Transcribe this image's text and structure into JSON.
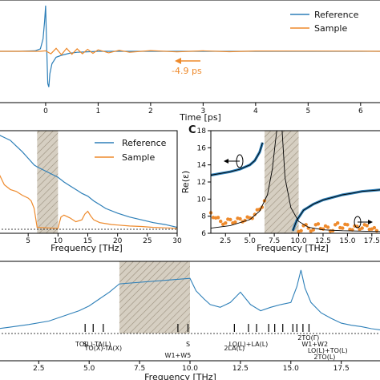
{
  "chart_data": [
    {
      "id": "time_domain",
      "type": "line",
      "xlabel": "Time [ps]",
      "xlim": [
        -0.9,
        6.4
      ],
      "ylim": [
        -1,
        1
      ],
      "xticks": [
        0,
        1,
        2,
        3,
        4,
        5,
        6
      ],
      "xtick_labels": [
        "0",
        "1",
        "2",
        "3",
        "4",
        "5",
        "6"
      ],
      "legend": {
        "placement": "top-right",
        "entries": [
          "Reference",
          "Sample"
        ]
      },
      "annotation": {
        "text": "-4.9 ps",
        "color": "#ee8a2c",
        "x": 1.8,
        "y": -0.12
      },
      "series": [
        {
          "name": "Reference",
          "color": "#2d7fb8",
          "x": [
            -0.9,
            -0.5,
            -0.2,
            -0.1,
            -0.05,
            -0.02,
            0.0,
            0.02,
            0.04,
            0.06,
            0.08,
            0.12,
            0.2,
            0.3,
            0.45,
            0.6,
            0.8,
            1.0,
            1.3,
            1.6,
            2.0,
            3.0,
            4.0,
            5.0,
            6.4
          ],
          "y": [
            0,
            0,
            0.01,
            0.05,
            0.25,
            0.6,
            0.92,
            0.1,
            -0.65,
            -0.72,
            -0.45,
            -0.25,
            -0.12,
            -0.08,
            -0.04,
            -0.02,
            -0.01,
            0.0,
            0.0,
            0.0,
            0.0,
            0.0,
            0.0,
            0.0,
            0.0
          ]
        },
        {
          "name": "Sample",
          "color": "#ee8a2c",
          "x": [
            -0.9,
            -0.3,
            -0.1,
            0.0,
            0.1,
            0.2,
            0.3,
            0.4,
            0.5,
            0.6,
            0.7,
            0.8,
            0.9,
            1.0,
            1.2,
            1.4,
            1.6,
            2.0,
            2.5,
            3.0,
            3.5,
            4.0,
            5.0,
            6.0,
            6.4
          ],
          "y": [
            0,
            0,
            0.0,
            0.01,
            -0.05,
            0.06,
            -0.07,
            0.06,
            -0.06,
            0.05,
            -0.05,
            0.04,
            -0.04,
            0.03,
            -0.03,
            0.02,
            -0.02,
            0.015,
            -0.012,
            0.01,
            -0.008,
            0.006,
            0.005,
            0.003,
            0.0
          ]
        }
      ]
    },
    {
      "id": "spectrum",
      "type": "line",
      "xlabel": "Frequency [THz]",
      "xlim": [
        0,
        30
      ],
      "ylim": [
        0,
        1
      ],
      "xticks": [
        5,
        10,
        15,
        20,
        25,
        30
      ],
      "xtick_labels": [
        "5",
        "10",
        "15",
        "20",
        "25",
        "30"
      ],
      "shaded_region": [
        6.5,
        10
      ],
      "legend": {
        "placement": "top-right",
        "entries": [
          "Reference",
          "Sample"
        ]
      },
      "series": [
        {
          "name": "Reference",
          "color": "#2d7fb8",
          "x": [
            0,
            1,
            2,
            3,
            4,
            5,
            6,
            6.5,
            10,
            11,
            12,
            13,
            13.5,
            14,
            15,
            16,
            17,
            18,
            20,
            22,
            24,
            26,
            28,
            30
          ],
          "y": [
            1.0,
            0.97,
            0.94,
            0.88,
            0.82,
            0.75,
            0.68,
            0.66,
            0.55,
            0.5,
            0.46,
            0.42,
            0.4,
            0.38,
            0.35,
            0.3,
            0.26,
            0.22,
            0.17,
            0.13,
            0.1,
            0.07,
            0.05,
            0.02
          ]
        },
        {
          "name": "Sample",
          "color": "#ee8a2c",
          "x": [
            0,
            1,
            2,
            3,
            4,
            5,
            5.5,
            6,
            6.5,
            10,
            10.5,
            11,
            12,
            13,
            14,
            14.5,
            15,
            15.5,
            16,
            17,
            18,
            19,
            20,
            22,
            24,
            26,
            28,
            30
          ],
          "y": [
            0.6,
            0.47,
            0.42,
            0.4,
            0.36,
            0.33,
            0.3,
            0.22,
            0.02,
            0.01,
            0.13,
            0.15,
            0.12,
            0.08,
            0.1,
            0.16,
            0.19,
            0.14,
            0.1,
            0.07,
            0.06,
            0.05,
            0.045,
            0.035,
            0.03,
            0.02,
            0.015,
            0.01
          ]
        }
      ]
    },
    {
      "id": "permittivity",
      "type": "scatter",
      "panel_label": "C",
      "ylabel": "Re(ε)",
      "xlabel": "Frequency [THz]",
      "xlim": [
        1,
        18.5
      ],
      "ylim": [
        6,
        18
      ],
      "xticks": [
        2.5,
        5.0,
        7.5,
        10.0,
        12.5,
        15.0,
        17.5
      ],
      "xtick_labels": [
        "2.5",
        "5.0",
        "7.5",
        "10.0",
        "12.5",
        "15.0",
        "17.5"
      ],
      "yticks": [
        6,
        8,
        10,
        12,
        14,
        16,
        18
      ],
      "ytick_labels": [
        "6",
        "8",
        "10",
        "12",
        "14",
        "16",
        "18"
      ],
      "shaded_region": [
        6.5,
        10
      ],
      "series": [
        {
          "name": "",
          "color": "#2d7fb8",
          "x": [
            1.0,
            2.0,
            3.0,
            4.0,
            5.0,
            5.5,
            6.0,
            6.3,
            9.4,
            9.8,
            10.5,
            11.5,
            12.5,
            13.5,
            14.5,
            15.5,
            16.5,
            17.5,
            18.5
          ],
          "y": [
            12.8,
            13.0,
            13.2,
            13.5,
            14.0,
            14.5,
            15.5,
            16.6,
            6.3,
            7.5,
            8.7,
            9.4,
            9.9,
            10.2,
            10.5,
            10.7,
            10.9,
            11.0,
            11.1
          ]
        },
        {
          "name": "",
          "color": "#ee8a2c",
          "x": [
            1.0,
            1.5,
            2.0,
            2.5,
            3.0,
            3.5,
            4.0,
            4.5,
            5.0,
            5.5,
            6.0,
            6.5,
            10.0,
            10.5,
            11.0,
            11.5,
            12.0,
            12.5,
            13.0,
            13.5,
            14.0,
            14.5,
            15.0,
            15.5,
            16.0,
            16.5,
            17.0,
            17.5,
            18.0
          ],
          "y": [
            8.4,
            7.8,
            7.4,
            7.2,
            7.6,
            7.3,
            7.7,
            7.5,
            7.8,
            8.2,
            8.8,
            9.8,
            6.2,
            6.9,
            6.6,
            6.4,
            7.1,
            6.5,
            6.7,
            6.3,
            7.2,
            6.6,
            7.0,
            6.4,
            6.8,
            6.6,
            6.9,
            6.5,
            6.3
          ]
        }
      ]
    },
    {
      "id": "raman",
      "type": "line",
      "xlabel": "Frequency [THz]",
      "xlim": [
        0.5,
        19.5
      ],
      "ylim": [
        0,
        1
      ],
      "xticks": [
        2.5,
        5.0,
        7.5,
        10.0,
        12.5,
        15.0,
        17.5
      ],
      "xtick_labels": [
        "2.5",
        "5.0",
        "7.5",
        "10.0",
        "12.5",
        "15.0",
        "17.5"
      ],
      "shaded_region": [
        6.5,
        10
      ],
      "series": [
        {
          "name": "",
          "color": "#2d7fb8",
          "x": [
            0.5,
            1.0,
            2.0,
            3.0,
            4.0,
            4.5,
            5.0,
            5.5,
            6.0,
            6.5,
            10.0,
            10.3,
            10.7,
            11.0,
            11.5,
            12.0,
            12.5,
            13.0,
            13.5,
            14.0,
            14.5,
            15.0,
            15.3,
            15.5,
            15.7,
            16.0,
            16.5,
            17.0,
            17.5,
            18.0,
            18.5,
            19.0,
            19.5
          ],
          "y": [
            0.07,
            0.09,
            0.13,
            0.18,
            0.28,
            0.33,
            0.4,
            0.5,
            0.6,
            0.72,
            0.8,
            0.62,
            0.5,
            0.42,
            0.38,
            0.45,
            0.6,
            0.42,
            0.33,
            0.38,
            0.42,
            0.45,
            0.68,
            0.92,
            0.66,
            0.45,
            0.3,
            0.22,
            0.15,
            0.12,
            0.1,
            0.07,
            0.05
          ]
        }
      ],
      "assignments": [
        {
          "label": "S",
          "x": 4.8,
          "label_pos": "low"
        },
        {
          "label": "TO(L)-TA(L)",
          "x": 5.2,
          "label_pos": "low"
        },
        {
          "label": "TO(X)-TA(X)",
          "x": 5.7,
          "label_pos": "mid"
        },
        {
          "label": "W1+W5",
          "x": 9.4,
          "label_pos": "mid2"
        },
        {
          "label": "S",
          "x": 9.9,
          "label_pos": "low"
        },
        {
          "label": "2LA(L)",
          "x": 12.2,
          "label_pos": "mid"
        },
        {
          "label": "LO(L)+LA(L)",
          "x": 12.9,
          "label_pos": "low"
        },
        {
          "label": "",
          "x": 13.3,
          "label_pos": "none"
        },
        {
          "label": "",
          "x": 13.9,
          "label_pos": "none"
        },
        {
          "label": "",
          "x": 14.2,
          "label_pos": "none"
        },
        {
          "label": "",
          "x": 14.6,
          "label_pos": "none"
        },
        {
          "label": "2TO(Γ)",
          "x": 15.1,
          "label_pos": "r1"
        },
        {
          "label": "W1+W2",
          "x": 15.3,
          "label_pos": "r2"
        },
        {
          "label": "LO(L)+TO(L)",
          "x": 15.6,
          "label_pos": "r3"
        },
        {
          "label": "2TO(L)",
          "x": 15.9,
          "label_pos": "r4"
        }
      ]
    }
  ]
}
